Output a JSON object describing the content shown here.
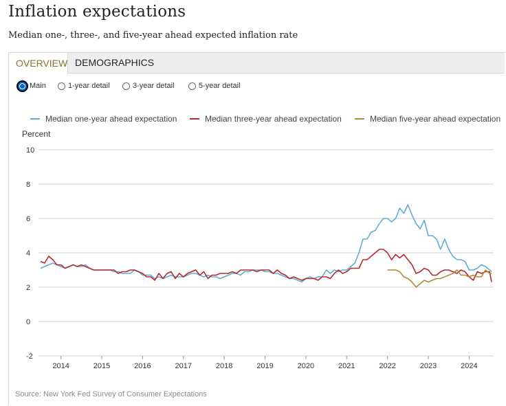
{
  "page": {
    "title": "Inflation expectations",
    "subtitle": "Median one-, three-, and five-year ahead expected inflation rate",
    "source": "Source: New York Fed Survey of Consumer Expectations"
  },
  "tabs": [
    {
      "label": "OVERVIEW",
      "active": true
    },
    {
      "label": "DEMOGRAPHICS",
      "active": false
    }
  ],
  "views": [
    {
      "label": "Main",
      "selected": true
    },
    {
      "label": "1-year detail",
      "selected": false
    },
    {
      "label": "3-year detail",
      "selected": false
    },
    {
      "label": "5-year detail",
      "selected": false
    }
  ],
  "chart_data": {
    "type": "line",
    "ylabel": "Percent",
    "ylim": [
      -2,
      10
    ],
    "yticks": [
      -2,
      0,
      2,
      4,
      6,
      8,
      10
    ],
    "xlim": [
      2013.45,
      2024.6
    ],
    "xticks": [
      2014,
      2015,
      2016,
      2017,
      2018,
      2019,
      2020,
      2021,
      2022,
      2023,
      2024
    ],
    "grid": "horizontal",
    "legend_position": "top",
    "series": [
      {
        "name": "Median one-year ahead expectation",
        "color": "#5eadd6",
        "points": [
          [
            2013.5,
            3.1
          ],
          [
            2013.6,
            3.2
          ],
          [
            2013.7,
            3.3
          ],
          [
            2013.8,
            3.4
          ],
          [
            2013.9,
            3.3
          ],
          [
            2014.0,
            3.2
          ],
          [
            2014.1,
            3.1
          ],
          [
            2014.2,
            3.2
          ],
          [
            2014.3,
            3.3
          ],
          [
            2014.4,
            3.2
          ],
          [
            2014.5,
            3.2
          ],
          [
            2014.6,
            3.3
          ],
          [
            2014.7,
            3.1
          ],
          [
            2014.8,
            3.0
          ],
          [
            2014.9,
            3.0
          ],
          [
            2015.0,
            3.0
          ],
          [
            2015.1,
            3.0
          ],
          [
            2015.2,
            3.0
          ],
          [
            2015.3,
            2.9
          ],
          [
            2015.4,
            2.9
          ],
          [
            2015.5,
            2.8
          ],
          [
            2015.6,
            2.8
          ],
          [
            2015.7,
            2.8
          ],
          [
            2015.8,
            3.0
          ],
          [
            2015.9,
            2.9
          ],
          [
            2016.0,
            2.7
          ],
          [
            2016.1,
            2.7
          ],
          [
            2016.2,
            2.7
          ],
          [
            2016.3,
            2.5
          ],
          [
            2016.4,
            2.6
          ],
          [
            2016.5,
            2.5
          ],
          [
            2016.6,
            2.6
          ],
          [
            2016.7,
            2.7
          ],
          [
            2016.8,
            2.6
          ],
          [
            2016.9,
            2.6
          ],
          [
            2017.0,
            2.6
          ],
          [
            2017.1,
            2.7
          ],
          [
            2017.2,
            2.8
          ],
          [
            2017.3,
            2.8
          ],
          [
            2017.4,
            2.7
          ],
          [
            2017.5,
            2.6
          ],
          [
            2017.6,
            2.7
          ],
          [
            2017.7,
            2.6
          ],
          [
            2017.8,
            2.6
          ],
          [
            2017.9,
            2.5
          ],
          [
            2018.0,
            2.6
          ],
          [
            2018.1,
            2.7
          ],
          [
            2018.2,
            2.8
          ],
          [
            2018.3,
            2.8
          ],
          [
            2018.4,
            2.7
          ],
          [
            2018.5,
            2.9
          ],
          [
            2018.6,
            2.9
          ],
          [
            2018.7,
            3.0
          ],
          [
            2018.8,
            3.0
          ],
          [
            2018.9,
            3.0
          ],
          [
            2019.0,
            2.9
          ],
          [
            2019.1,
            2.9
          ],
          [
            2019.2,
            2.8
          ],
          [
            2019.3,
            2.8
          ],
          [
            2019.4,
            2.7
          ],
          [
            2019.5,
            2.6
          ],
          [
            2019.6,
            2.5
          ],
          [
            2019.7,
            2.5
          ],
          [
            2019.8,
            2.4
          ],
          [
            2019.9,
            2.3
          ],
          [
            2020.0,
            2.5
          ],
          [
            2020.1,
            2.6
          ],
          [
            2020.2,
            2.5
          ],
          [
            2020.3,
            2.6
          ],
          [
            2020.4,
            2.6
          ],
          [
            2020.5,
            3.0
          ],
          [
            2020.6,
            2.8
          ],
          [
            2020.7,
            3.0
          ],
          [
            2020.8,
            2.9
          ],
          [
            2020.9,
            3.0
          ],
          [
            2021.0,
            3.0
          ],
          [
            2021.1,
            3.2
          ],
          [
            2021.2,
            3.4
          ],
          [
            2021.3,
            4.0
          ],
          [
            2021.4,
            4.8
          ],
          [
            2021.5,
            4.8
          ],
          [
            2021.6,
            5.2
          ],
          [
            2021.7,
            5.3
          ],
          [
            2021.8,
            5.7
          ],
          [
            2021.9,
            6.0
          ],
          [
            2022.0,
            6.0
          ],
          [
            2022.1,
            5.8
          ],
          [
            2022.2,
            6.0
          ],
          [
            2022.3,
            6.6
          ],
          [
            2022.4,
            6.3
          ],
          [
            2022.5,
            6.8
          ],
          [
            2022.6,
            6.2
          ],
          [
            2022.7,
            5.7
          ],
          [
            2022.8,
            5.4
          ],
          [
            2022.9,
            5.9
          ],
          [
            2023.0,
            5.0
          ],
          [
            2023.1,
            5.0
          ],
          [
            2023.2,
            4.8
          ],
          [
            2023.3,
            4.2
          ],
          [
            2023.4,
            4.8
          ],
          [
            2023.5,
            4.2
          ],
          [
            2023.6,
            3.8
          ],
          [
            2023.7,
            3.6
          ],
          [
            2023.8,
            3.6
          ],
          [
            2023.9,
            3.5
          ],
          [
            2024.0,
            3.0
          ],
          [
            2024.1,
            3.0
          ],
          [
            2024.2,
            3.1
          ],
          [
            2024.3,
            3.3
          ],
          [
            2024.4,
            3.2
          ],
          [
            2024.5,
            3.0
          ],
          [
            2024.55,
            2.9
          ]
        ]
      },
      {
        "name": "Median three-year ahead expectation",
        "color": "#b5282e",
        "points": [
          [
            2013.5,
            3.5
          ],
          [
            2013.6,
            3.4
          ],
          [
            2013.7,
            3.8
          ],
          [
            2013.8,
            3.6
          ],
          [
            2013.9,
            3.3
          ],
          [
            2014.0,
            3.3
          ],
          [
            2014.1,
            3.1
          ],
          [
            2014.2,
            3.2
          ],
          [
            2014.3,
            3.3
          ],
          [
            2014.4,
            3.2
          ],
          [
            2014.5,
            3.3
          ],
          [
            2014.6,
            3.2
          ],
          [
            2014.7,
            3.1
          ],
          [
            2014.8,
            3.0
          ],
          [
            2014.9,
            3.0
          ],
          [
            2015.0,
            3.0
          ],
          [
            2015.1,
            3.0
          ],
          [
            2015.2,
            3.0
          ],
          [
            2015.3,
            3.0
          ],
          [
            2015.4,
            2.8
          ],
          [
            2015.5,
            2.9
          ],
          [
            2015.6,
            2.9
          ],
          [
            2015.7,
            3.0
          ],
          [
            2015.8,
            3.0
          ],
          [
            2015.9,
            2.9
          ],
          [
            2016.0,
            2.8
          ],
          [
            2016.1,
            2.6
          ],
          [
            2016.2,
            2.6
          ],
          [
            2016.3,
            2.4
          ],
          [
            2016.4,
            2.8
          ],
          [
            2016.5,
            2.5
          ],
          [
            2016.6,
            2.8
          ],
          [
            2016.7,
            2.9
          ],
          [
            2016.8,
            2.5
          ],
          [
            2016.9,
            2.8
          ],
          [
            2017.0,
            2.6
          ],
          [
            2017.1,
            2.8
          ],
          [
            2017.2,
            2.9
          ],
          [
            2017.3,
            3.0
          ],
          [
            2017.4,
            2.7
          ],
          [
            2017.5,
            2.9
          ],
          [
            2017.6,
            2.5
          ],
          [
            2017.7,
            2.7
          ],
          [
            2017.8,
            2.7
          ],
          [
            2017.9,
            2.8
          ],
          [
            2018.0,
            2.8
          ],
          [
            2018.1,
            2.8
          ],
          [
            2018.2,
            2.9
          ],
          [
            2018.3,
            2.8
          ],
          [
            2018.4,
            3.0
          ],
          [
            2018.5,
            3.0
          ],
          [
            2018.6,
            3.0
          ],
          [
            2018.7,
            3.0
          ],
          [
            2018.8,
            2.9
          ],
          [
            2018.9,
            3.0
          ],
          [
            2019.0,
            3.0
          ],
          [
            2019.1,
            3.0
          ],
          [
            2019.2,
            2.8
          ],
          [
            2019.3,
            3.0
          ],
          [
            2019.4,
            2.8
          ],
          [
            2019.5,
            2.7
          ],
          [
            2019.6,
            2.5
          ],
          [
            2019.7,
            2.6
          ],
          [
            2019.8,
            2.5
          ],
          [
            2019.9,
            2.4
          ],
          [
            2020.0,
            2.5
          ],
          [
            2020.1,
            2.5
          ],
          [
            2020.2,
            2.5
          ],
          [
            2020.3,
            2.4
          ],
          [
            2020.4,
            2.6
          ],
          [
            2020.5,
            2.6
          ],
          [
            2020.6,
            2.5
          ],
          [
            2020.7,
            2.8
          ],
          [
            2020.8,
            3.0
          ],
          [
            2020.9,
            2.8
          ],
          [
            2021.0,
            2.9
          ],
          [
            2021.1,
            3.1
          ],
          [
            2021.2,
            3.1
          ],
          [
            2021.3,
            3.1
          ],
          [
            2021.4,
            3.6
          ],
          [
            2021.5,
            3.6
          ],
          [
            2021.6,
            3.8
          ],
          [
            2021.7,
            4.0
          ],
          [
            2021.8,
            4.2
          ],
          [
            2021.9,
            4.2
          ],
          [
            2022.0,
            4.0
          ],
          [
            2022.1,
            3.6
          ],
          [
            2022.2,
            3.9
          ],
          [
            2022.3,
            3.7
          ],
          [
            2022.4,
            3.9
          ],
          [
            2022.5,
            3.6
          ],
          [
            2022.6,
            3.3
          ],
          [
            2022.7,
            2.8
          ],
          [
            2022.8,
            2.9
          ],
          [
            2022.9,
            3.1
          ],
          [
            2023.0,
            3.0
          ],
          [
            2023.1,
            2.7
          ],
          [
            2023.2,
            2.7
          ],
          [
            2023.3,
            2.9
          ],
          [
            2023.4,
            3.0
          ],
          [
            2023.5,
            3.0
          ],
          [
            2023.6,
            2.9
          ],
          [
            2023.7,
            2.8
          ],
          [
            2023.8,
            3.0
          ],
          [
            2023.9,
            2.9
          ],
          [
            2024.0,
            2.6
          ],
          [
            2024.1,
            2.4
          ],
          [
            2024.2,
            2.9
          ],
          [
            2024.3,
            2.8
          ],
          [
            2024.4,
            2.9
          ],
          [
            2024.5,
            2.9
          ],
          [
            2024.55,
            2.3
          ]
        ]
      },
      {
        "name": "Median five-year ahead expectation",
        "color": "#b08a35",
        "points": [
          [
            2022.0,
            3.0
          ],
          [
            2022.1,
            3.0
          ],
          [
            2022.2,
            3.0
          ],
          [
            2022.3,
            2.9
          ],
          [
            2022.4,
            2.6
          ],
          [
            2022.5,
            2.5
          ],
          [
            2022.6,
            2.3
          ],
          [
            2022.7,
            2.0
          ],
          [
            2022.8,
            2.2
          ],
          [
            2022.9,
            2.4
          ],
          [
            2023.0,
            2.3
          ],
          [
            2023.1,
            2.4
          ],
          [
            2023.2,
            2.5
          ],
          [
            2023.3,
            2.5
          ],
          [
            2023.4,
            2.6
          ],
          [
            2023.5,
            2.7
          ],
          [
            2023.6,
            2.8
          ],
          [
            2023.7,
            3.0
          ],
          [
            2023.8,
            2.7
          ],
          [
            2023.9,
            2.7
          ],
          [
            2024.0,
            2.6
          ],
          [
            2024.1,
            2.7
          ],
          [
            2024.2,
            2.6
          ],
          [
            2024.3,
            2.6
          ],
          [
            2024.4,
            3.0
          ],
          [
            2024.5,
            2.8
          ],
          [
            2024.55,
            2.8
          ]
        ]
      }
    ]
  }
}
